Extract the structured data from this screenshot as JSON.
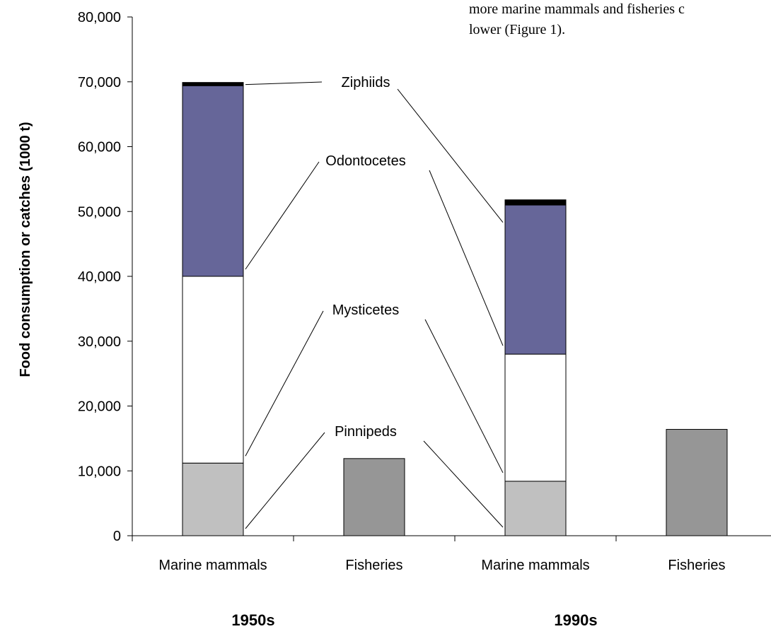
{
  "page_text": {
    "line1": "more marine mammals and fisheries c",
    "line2": "lower (Figure 1)."
  },
  "chart_data": {
    "type": "bar",
    "stacked": true,
    "ylabel": "Food consumption or catches (1000 t)",
    "ylim": [
      0,
      80000
    ],
    "yticks": [
      0,
      10000,
      20000,
      30000,
      40000,
      50000,
      60000,
      70000,
      80000
    ],
    "ytick_labels": [
      "0",
      "10,000",
      "20,000",
      "30,000",
      "40,000",
      "50,000",
      "60,000",
      "70,000",
      "80,000"
    ],
    "categories": [
      "Marine mammals",
      "Fisheries",
      "Marine mammals",
      "Fisheries"
    ],
    "groups": [
      {
        "label": "1950s",
        "categories": [
          0,
          1
        ]
      },
      {
        "label": "1990s",
        "categories": [
          2,
          3
        ]
      }
    ],
    "series": [
      {
        "name": "Pinnipeds",
        "color": "#c0c0c0",
        "values": [
          11200,
          null,
          8400,
          null
        ]
      },
      {
        "name": "Mysticetes",
        "color": "#ffffff",
        "values": [
          28800,
          null,
          19600,
          null
        ]
      },
      {
        "name": "Odontocetes",
        "color": "#666699",
        "values": [
          29400,
          null,
          23000,
          null
        ]
      },
      {
        "name": "Ziphiids",
        "color": "#000000",
        "values": [
          500,
          null,
          800,
          null
        ]
      },
      {
        "name": "Fisheries",
        "color": "#969696",
        "values": [
          null,
          11900,
          null,
          16400
        ]
      }
    ],
    "annotations": [
      "Ziphiids",
      "Odontocetes",
      "Mysticetes",
      "Pinnipeds"
    ],
    "grid": false,
    "legend": "none"
  }
}
